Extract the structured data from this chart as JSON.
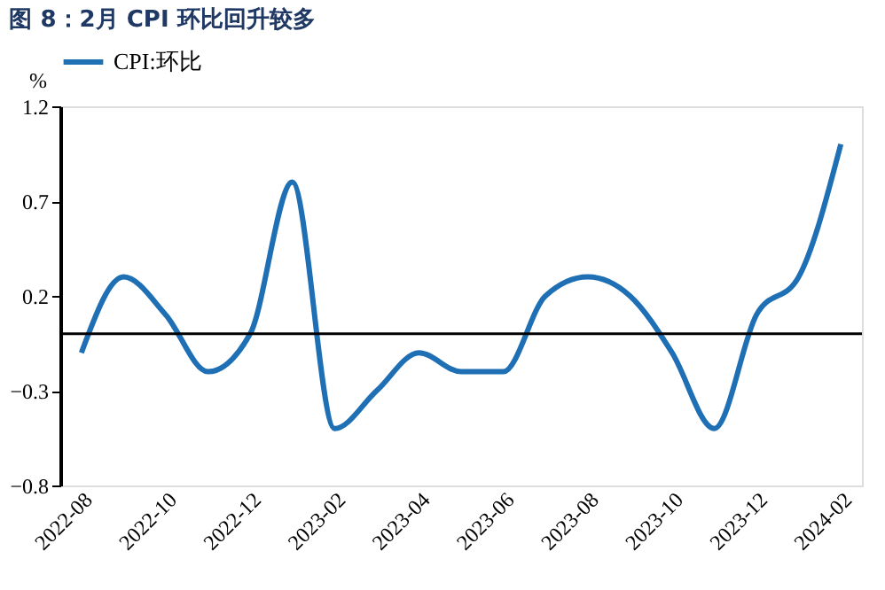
{
  "chart_data": {
    "type": "line",
    "title": "图 8：2月 CPI 环比回升较多",
    "ylabel": "%",
    "categories": [
      "2022-08",
      null,
      "2022-10",
      null,
      "2022-12",
      null,
      "2023-02",
      null,
      "2023-04",
      null,
      "2023-06",
      null,
      "2023-08",
      null,
      "2023-10",
      null,
      "2023-12",
      null,
      "2024-02"
    ],
    "series": [
      {
        "name": "CPI:环比",
        "color": "#1f6fb4",
        "values": [
          -0.1,
          0.3,
          0.1,
          -0.2,
          0.0,
          0.8,
          -0.5,
          -0.3,
          -0.1,
          -0.2,
          -0.2,
          0.2,
          0.3,
          0.2,
          -0.1,
          -0.5,
          0.1,
          0.3,
          1.0
        ]
      }
    ],
    "ylim": [
      -0.8,
      1.2
    ],
    "yticks": [
      -0.8,
      -0.3,
      0.2,
      0.7,
      1.2
    ],
    "ref_lines": [
      {
        "axis": "y",
        "value": 0,
        "label": null,
        "color": "#000000"
      }
    ],
    "grid": false,
    "legend": "top",
    "marker": "none",
    "line_style": "solid"
  }
}
